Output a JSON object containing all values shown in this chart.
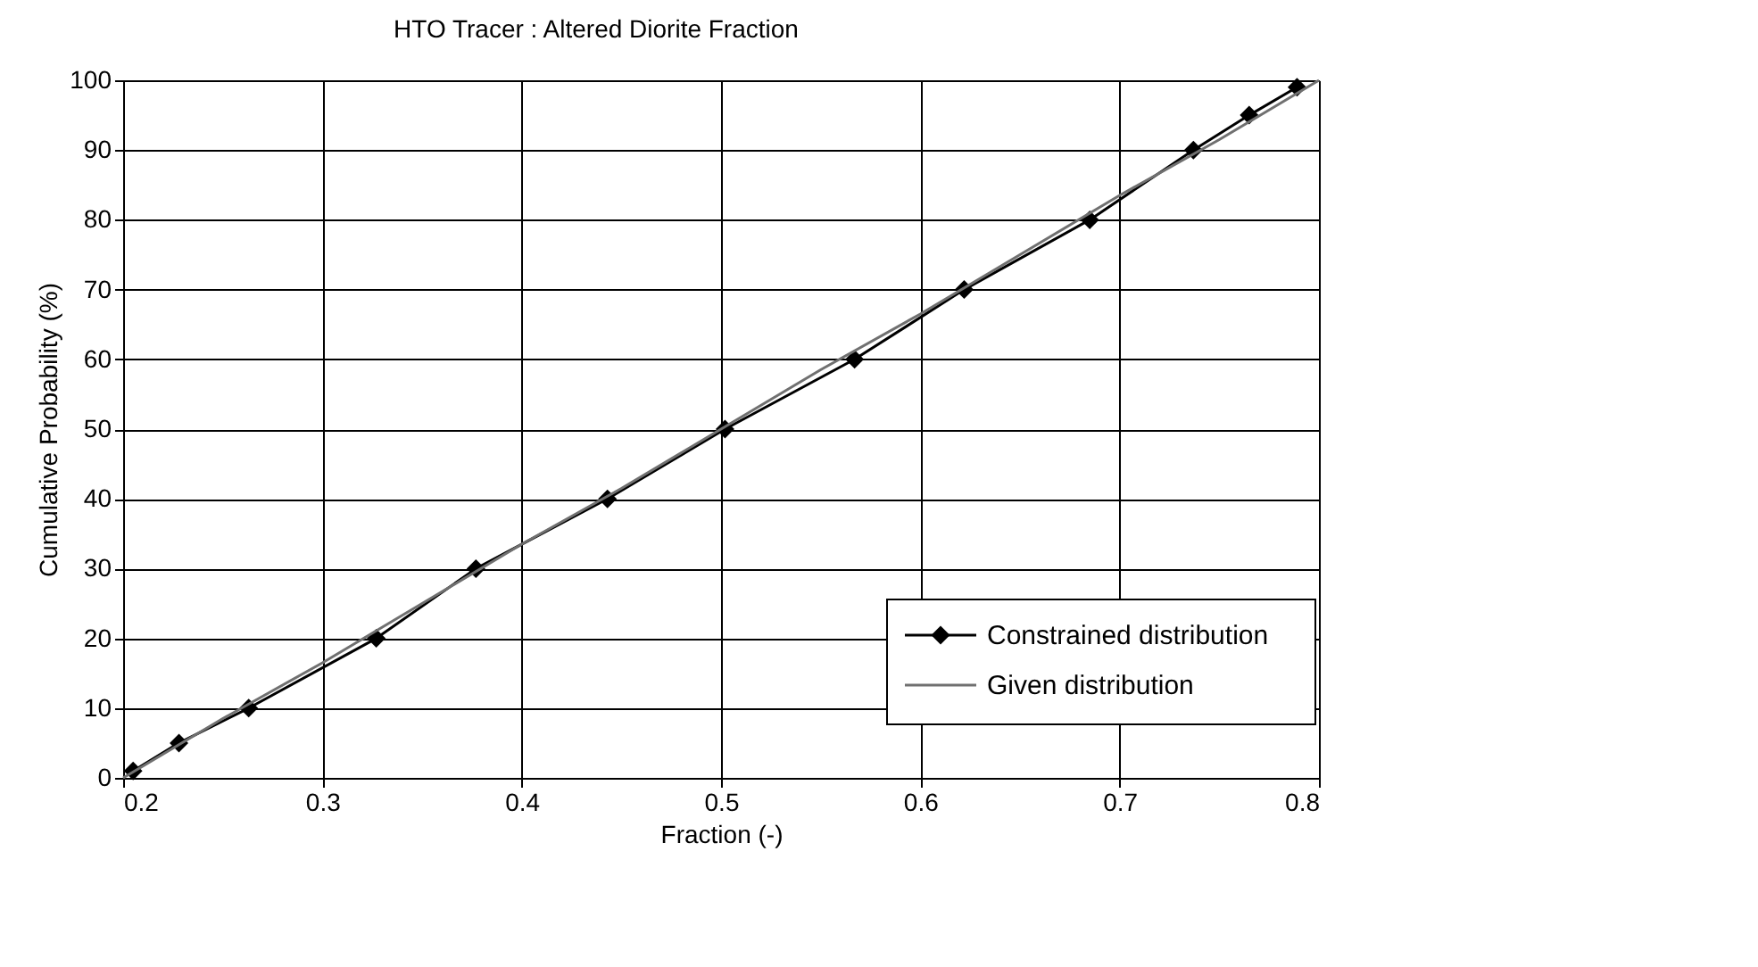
{
  "chart_data": {
    "type": "line",
    "title": "HTO  Tracer :            Altered Diorite Fraction",
    "xlabel": "Fraction (-)",
    "ylabel": "Cumulative Probability (%)",
    "xlim": [
      0.2,
      0.8
    ],
    "xticks": [
      0.2,
      0.3,
      0.4,
      0.5,
      0.6,
      0.7,
      0.8
    ],
    "ylim": [
      0,
      100
    ],
    "yticks": [
      0,
      10,
      20,
      30,
      40,
      50,
      60,
      70,
      80,
      90,
      100
    ],
    "grid": true,
    "legend": "bottom right",
    "series": [
      {
        "name": "Constrained distribution",
        "color": "#000000",
        "marker": "diamond",
        "x": [
          0.205,
          0.228,
          0.263,
          0.327,
          0.377,
          0.443,
          0.502,
          0.567,
          0.622,
          0.685,
          0.737,
          0.765,
          0.789
        ],
        "values": [
          1,
          5,
          10,
          20,
          30,
          40,
          50,
          60,
          70,
          80,
          90,
          95,
          99
        ]
      },
      {
        "name": "Given distribution",
        "color": "#707070",
        "marker": "none",
        "x": [
          0.2,
          0.25,
          0.3,
          0.35,
          0.4,
          0.45,
          0.5,
          0.55,
          0.6,
          0.65,
          0.7,
          0.75,
          0.8
        ],
        "values": [
          0,
          8.5,
          16.5,
          25,
          33.5,
          41.5,
          50,
          58.5,
          66.5,
          75,
          83.5,
          91.5,
          100
        ]
      }
    ]
  }
}
